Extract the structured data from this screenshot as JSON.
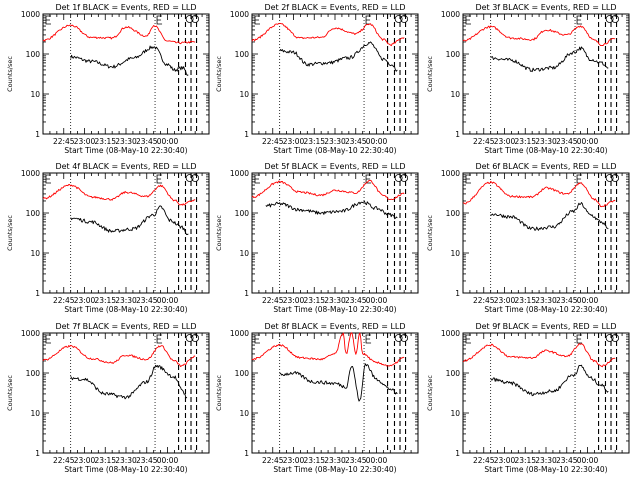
{
  "chart_data": [
    {
      "type": "line",
      "title": "Det 1f BLACK = Events, RED = LLD",
      "xlabel": "Start Time (08-May-10 22:30:40)",
      "ylabel": "Counts/sec",
      "yscale": "log",
      "ylim": [
        1,
        1000
      ],
      "x_ticks": [
        "22:45",
        "23:00",
        "23:15",
        "23:30",
        "23:45",
        "00:00"
      ],
      "y_ticks": [
        "1",
        "10",
        "100",
        "1000"
      ],
      "grid": false,
      "series": [
        {
          "name": "BLACK = Events",
          "color": "#000000",
          "x_minutes": [
            20,
            35,
            50,
            65,
            80,
            90,
            95,
            101,
            105
          ],
          "values": [
            85,
            65,
            48,
            78,
            150,
            55,
            40,
            45,
            30
          ]
        },
        {
          "name": "RED = LLD",
          "color": "#ff0000",
          "x_minutes": [
            0,
            20,
            35,
            50,
            60,
            75,
            80,
            90,
            98,
            110
          ],
          "values": [
            220,
            520,
            260,
            250,
            470,
            280,
            520,
            210,
            190,
            200
          ]
        }
      ]
    },
    {
      "type": "line",
      "title": "Det 2f BLACK = Events, RED = LLD",
      "xlabel": "Start Time (08-May-10 22:30:40)",
      "ylabel": "Counts/sec",
      "yscale": "log",
      "ylim": [
        1,
        1000
      ],
      "x_ticks": [
        "22:45",
        "23:00",
        "23:15",
        "23:30",
        "23:45",
        "00:00"
      ],
      "y_ticks": [
        "1",
        "10",
        "100",
        "1000"
      ],
      "grid": false,
      "series": [
        {
          "name": "BLACK = Events",
          "color": "#000000",
          "x_minutes": [
            20,
            30,
            40,
            55,
            70,
            85,
            95,
            101,
            105
          ],
          "values": [
            120,
            110,
            55,
            60,
            80,
            190,
            75,
            55,
            40
          ]
        },
        {
          "name": "RED = LLD",
          "color": "#ff0000",
          "x_minutes": [
            0,
            20,
            35,
            50,
            60,
            75,
            85,
            95,
            100,
            110
          ],
          "values": [
            220,
            560,
            250,
            260,
            450,
            320,
            560,
            230,
            170,
            260
          ]
        }
      ]
    },
    {
      "type": "line",
      "title": "Det 3f BLACK = Events, RED = LLD",
      "xlabel": "Start Time (08-May-10 22:30:40)",
      "ylabel": "Counts/sec",
      "yscale": "log",
      "ylim": [
        1,
        1000
      ],
      "x_ticks": [
        "22:45",
        "23:00",
        "23:15",
        "23:30",
        "23:45",
        "00:00"
      ],
      "y_ticks": [
        "1",
        "10",
        "100",
        "1000"
      ],
      "grid": false,
      "series": [
        {
          "name": "BLACK = Events",
          "color": "#000000",
          "x_minutes": [
            20,
            35,
            50,
            65,
            80,
            85,
            92,
            100,
            105
          ],
          "values": [
            80,
            70,
            40,
            45,
            110,
            140,
            75,
            60,
            45
          ]
        },
        {
          "name": "RED = LLD",
          "color": "#ff0000",
          "x_minutes": [
            0,
            20,
            35,
            50,
            60,
            75,
            85,
            95,
            100,
            110
          ],
          "values": [
            210,
            480,
            250,
            230,
            400,
            300,
            500,
            220,
            170,
            240
          ]
        }
      ]
    },
    {
      "type": "line",
      "title": "Det 4f BLACK = Events, RED = LLD",
      "xlabel": "Start Time (08-May-10 22:30:40)",
      "ylabel": "Counts/sec",
      "yscale": "log",
      "ylim": [
        1,
        1000
      ],
      "x_ticks": [
        "22:45",
        "23:00",
        "23:15",
        "23:30",
        "23:45",
        "00:00"
      ],
      "y_ticks": [
        "1",
        "10",
        "100",
        "1000"
      ],
      "grid": false,
      "series": [
        {
          "name": "BLACK = Events",
          "color": "#000000",
          "x_minutes": [
            20,
            35,
            50,
            65,
            80,
            85,
            92,
            100,
            105
          ],
          "values": [
            75,
            60,
            35,
            40,
            90,
            140,
            65,
            45,
            30
          ]
        },
        {
          "name": "RED = LLD",
          "color": "#ff0000",
          "x_minutes": [
            0,
            20,
            35,
            50,
            60,
            75,
            85,
            95,
            100,
            110
          ],
          "values": [
            230,
            500,
            250,
            220,
            330,
            260,
            480,
            210,
            160,
            210
          ]
        }
      ]
    },
    {
      "type": "line",
      "title": "Det 5f BLACK = Events, RED = LLD",
      "xlabel": "Start Time (08-May-10 22:30:40)",
      "ylabel": "Counts/sec",
      "yscale": "log",
      "ylim": [
        1,
        1000
      ],
      "x_ticks": [
        "22:45",
        "23:00",
        "23:15",
        "23:30",
        "23:45",
        "00:00"
      ],
      "y_ticks": [
        "1",
        "10",
        "100",
        "1000"
      ],
      "grid": false,
      "series": [
        {
          "name": "BLACK = Events",
          "color": "#000000",
          "x_minutes": [
            10,
            20,
            35,
            50,
            65,
            80,
            90,
            100,
            105
          ],
          "values": [
            150,
            170,
            120,
            100,
            110,
            190,
            130,
            90,
            75
          ]
        },
        {
          "name": "RED = LLD",
          "color": "#ff0000",
          "x_minutes": [
            0,
            20,
            35,
            50,
            60,
            75,
            85,
            95,
            100,
            110
          ],
          "values": [
            250,
            600,
            330,
            280,
            370,
            320,
            640,
            270,
            220,
            300
          ]
        }
      ]
    },
    {
      "type": "line",
      "title": "Det 6f BLACK = Events, RED = LLD",
      "xlabel": "Start Time (08-May-10 22:30:40)",
      "ylabel": "Counts/sec",
      "yscale": "log",
      "ylim": [
        1,
        1000
      ],
      "x_ticks": [
        "22:45",
        "23:00",
        "23:15",
        "23:30",
        "23:45",
        "00:00"
      ],
      "y_ticks": [
        "1",
        "10",
        "100",
        "1000"
      ],
      "grid": false,
      "series": [
        {
          "name": "BLACK = Events",
          "color": "#000000",
          "x_minutes": [
            20,
            35,
            50,
            65,
            80,
            85,
            92,
            100,
            105
          ],
          "values": [
            95,
            80,
            40,
            45,
            110,
            170,
            90,
            60,
            40
          ]
        },
        {
          "name": "RED = LLD",
          "color": "#ff0000",
          "x_minutes": [
            0,
            20,
            35,
            50,
            60,
            75,
            85,
            95,
            100,
            110
          ],
          "values": [
            170,
            580,
            260,
            250,
            420,
            300,
            560,
            220,
            150,
            200
          ]
        }
      ]
    },
    {
      "type": "line",
      "title": "Det 7f BLACK = Events, RED = LLD",
      "xlabel": "Start Time (08-May-10 22:30:40)",
      "ylabel": "Counts/sec",
      "yscale": "log",
      "ylim": [
        1,
        1000
      ],
      "x_ticks": [
        "22:45",
        "23:00",
        "23:15",
        "23:30",
        "23:45",
        "00:00"
      ],
      "y_ticks": [
        "1",
        "10",
        "100",
        "1000"
      ],
      "grid": false,
      "series": [
        {
          "name": "BLACK = Events",
          "color": "#000000",
          "x_minutes": [
            20,
            30,
            45,
            60,
            75,
            82,
            95,
            100,
            104
          ],
          "values": [
            75,
            70,
            30,
            25,
            60,
            150,
            80,
            40,
            25
          ]
        },
        {
          "name": "RED = LLD",
          "color": "#ff0000",
          "x_minutes": [
            0,
            20,
            35,
            50,
            60,
            75,
            85,
            95,
            100,
            110
          ],
          "values": [
            210,
            470,
            230,
            180,
            280,
            220,
            480,
            200,
            150,
            260
          ]
        }
      ]
    },
    {
      "type": "line",
      "title": "Det 8f BLACK = Events, RED = LLD",
      "xlabel": "Start Time (08-May-10 22:30:40)",
      "ylabel": "Counts/sec",
      "yscale": "log",
      "ylim": [
        1,
        1000
      ],
      "x_ticks": [
        "22:45",
        "23:00",
        "23:15",
        "23:30",
        "23:45",
        "00:00"
      ],
      "y_ticks": [
        "1",
        "10",
        "100",
        "1000"
      ],
      "grid": false,
      "series": [
        {
          "name": "BLACK = Events",
          "color": "#000000",
          "x_minutes": [
            20,
            30,
            45,
            60,
            68,
            72,
            78,
            82,
            90,
            100,
            105
          ],
          "values": [
            90,
            100,
            60,
            55,
            45,
            150,
            20,
            170,
            70,
            40,
            30
          ]
        },
        {
          "name": "RED = LLD",
          "color": "#ff0000",
          "x_minutes": [
            0,
            20,
            35,
            50,
            60,
            66,
            68,
            72,
            75,
            78,
            80,
            90,
            100,
            110
          ],
          "values": [
            220,
            500,
            240,
            220,
            300,
            1000,
            300,
            1000,
            300,
            1000,
            300,
            180,
            150,
            240
          ]
        }
      ]
    },
    {
      "type": "line",
      "title": "Det 9f BLACK = Events, RED = LLD",
      "xlabel": "Start Time (08-May-10 22:30:40)",
      "ylabel": "Counts/sec",
      "yscale": "log",
      "ylim": [
        1,
        1000
      ],
      "x_ticks": [
        "22:45",
        "23:00",
        "23:15",
        "23:30",
        "23:45",
        "00:00"
      ],
      "y_ticks": [
        "1",
        "10",
        "100",
        "1000"
      ],
      "grid": false,
      "series": [
        {
          "name": "BLACK = Events",
          "color": "#000000",
          "x_minutes": [
            20,
            35,
            50,
            65,
            80,
            85,
            92,
            100,
            105
          ],
          "values": [
            70,
            55,
            30,
            35,
            90,
            150,
            75,
            50,
            35
          ]
        },
        {
          "name": "RED = LLD",
          "color": "#ff0000",
          "x_minutes": [
            0,
            20,
            35,
            50,
            60,
            75,
            85,
            95,
            100,
            110
          ],
          "values": [
            200,
            500,
            250,
            240,
            360,
            260,
            520,
            200,
            150,
            230
          ]
        }
      ]
    }
  ]
}
